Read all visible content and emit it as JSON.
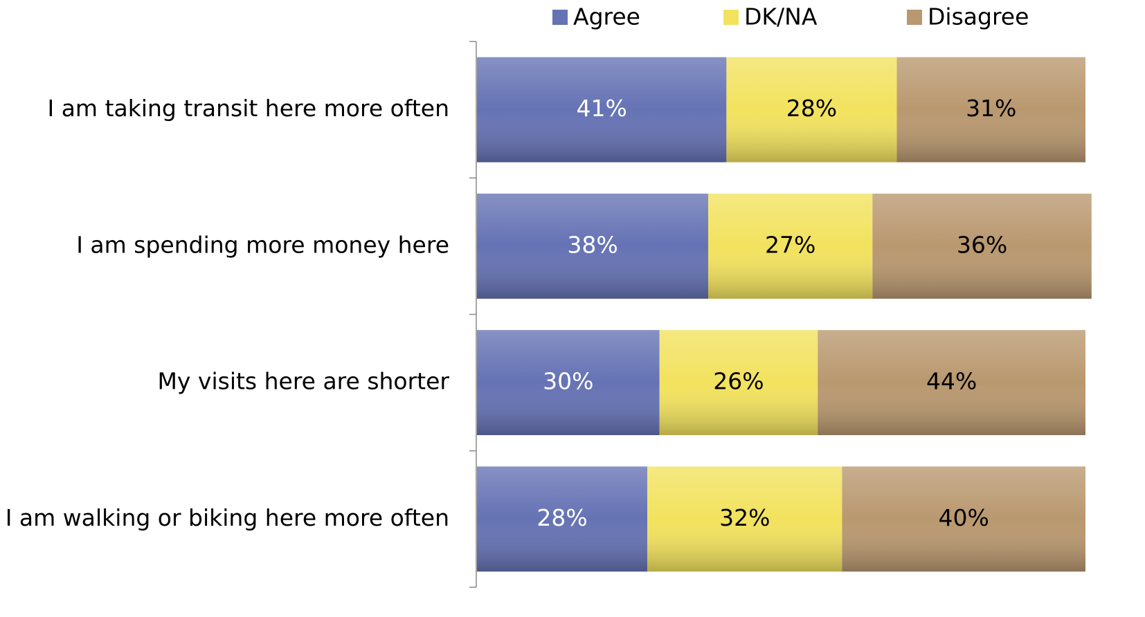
{
  "chart_data": {
    "type": "stacked_barh",
    "categories": [
      "I am taking transit here more often",
      "I am spending more money here",
      "My visits here are shorter",
      "I am walking or biking here more often"
    ],
    "series": [
      {
        "name": "Agree",
        "color": "#6572b4",
        "values": [
          41,
          38,
          30,
          28
        ],
        "value_labels": [
          "41%",
          "38%",
          "30%",
          "28%"
        ]
      },
      {
        "name": "DK/NA",
        "color": "#f2e25e",
        "values": [
          28,
          27,
          26,
          32
        ],
        "value_labels": [
          "28%",
          "27%",
          "26%",
          "32%"
        ]
      },
      {
        "name": "Disagree",
        "color": "#b9986f",
        "values": [
          31,
          36,
          44,
          40
        ],
        "value_labels": [
          "31%",
          "36%",
          "44%",
          "40%"
        ]
      }
    ],
    "xlim": [
      0,
      100
    ],
    "legend": "top"
  }
}
